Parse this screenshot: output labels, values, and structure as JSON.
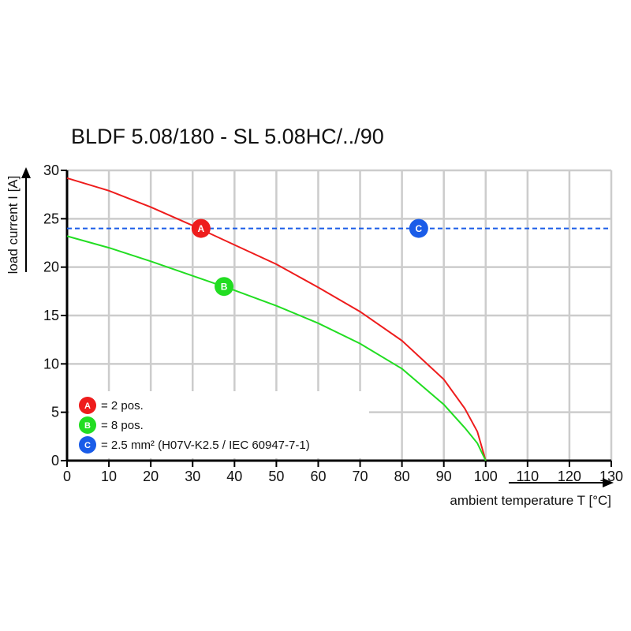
{
  "chart_data": {
    "type": "line",
    "title": "BLDF 5.08/180 - SL 5.08HC/../90",
    "xlabel": "ambient temperature T [°C]",
    "ylabel": "load current I [A]",
    "xlim": [
      0,
      130
    ],
    "ylim": [
      0,
      30
    ],
    "xticks": [
      0,
      10,
      20,
      30,
      40,
      50,
      60,
      70,
      80,
      90,
      100,
      110,
      120,
      130
    ],
    "yticks": [
      0,
      5,
      10,
      15,
      20,
      25,
      30
    ],
    "grid": true,
    "legend_position": "bottom-left",
    "series": [
      {
        "name": "A",
        "color": "#ee1c1c",
        "x": [
          0,
          10,
          20,
          30,
          40,
          50,
          60,
          70,
          80,
          90,
          95,
          98,
          100
        ],
        "y": [
          29.2,
          27.9,
          26.2,
          24.3,
          22.3,
          20.3,
          17.9,
          15.4,
          12.4,
          8.4,
          5.4,
          3.0,
          0
        ]
      },
      {
        "name": "B",
        "color": "#22dd22",
        "x": [
          0,
          10,
          20,
          30,
          40,
          50,
          60,
          70,
          80,
          90,
          95,
          98,
          100
        ],
        "y": [
          23.2,
          22.0,
          20.6,
          19.1,
          17.6,
          16.0,
          14.2,
          12.1,
          9.5,
          5.8,
          3.4,
          1.8,
          0
        ]
      },
      {
        "name": "C",
        "color": "#1a5ce8",
        "dashed": true,
        "x": [
          0,
          130
        ],
        "y": [
          24,
          24
        ]
      }
    ],
    "markers": [
      {
        "label": "A",
        "x": 32,
        "y": 24,
        "color": "#ee1c1c"
      },
      {
        "label": "B",
        "x": 37.5,
        "y": 18,
        "color": "#22dd22"
      },
      {
        "label": "C",
        "x": 84,
        "y": 24,
        "color": "#1a5ce8"
      }
    ],
    "legend": [
      {
        "badge": "A",
        "text": "= 2 pos.",
        "color": "#ee1c1c"
      },
      {
        "badge": "B",
        "text": "= 8 pos.",
        "color": "#22dd22"
      },
      {
        "badge": "C",
        "text": "= 2.5 mm² (H07V-K2.5 / IEC 60947-7-1)",
        "color": "#1a5ce8"
      }
    ]
  }
}
